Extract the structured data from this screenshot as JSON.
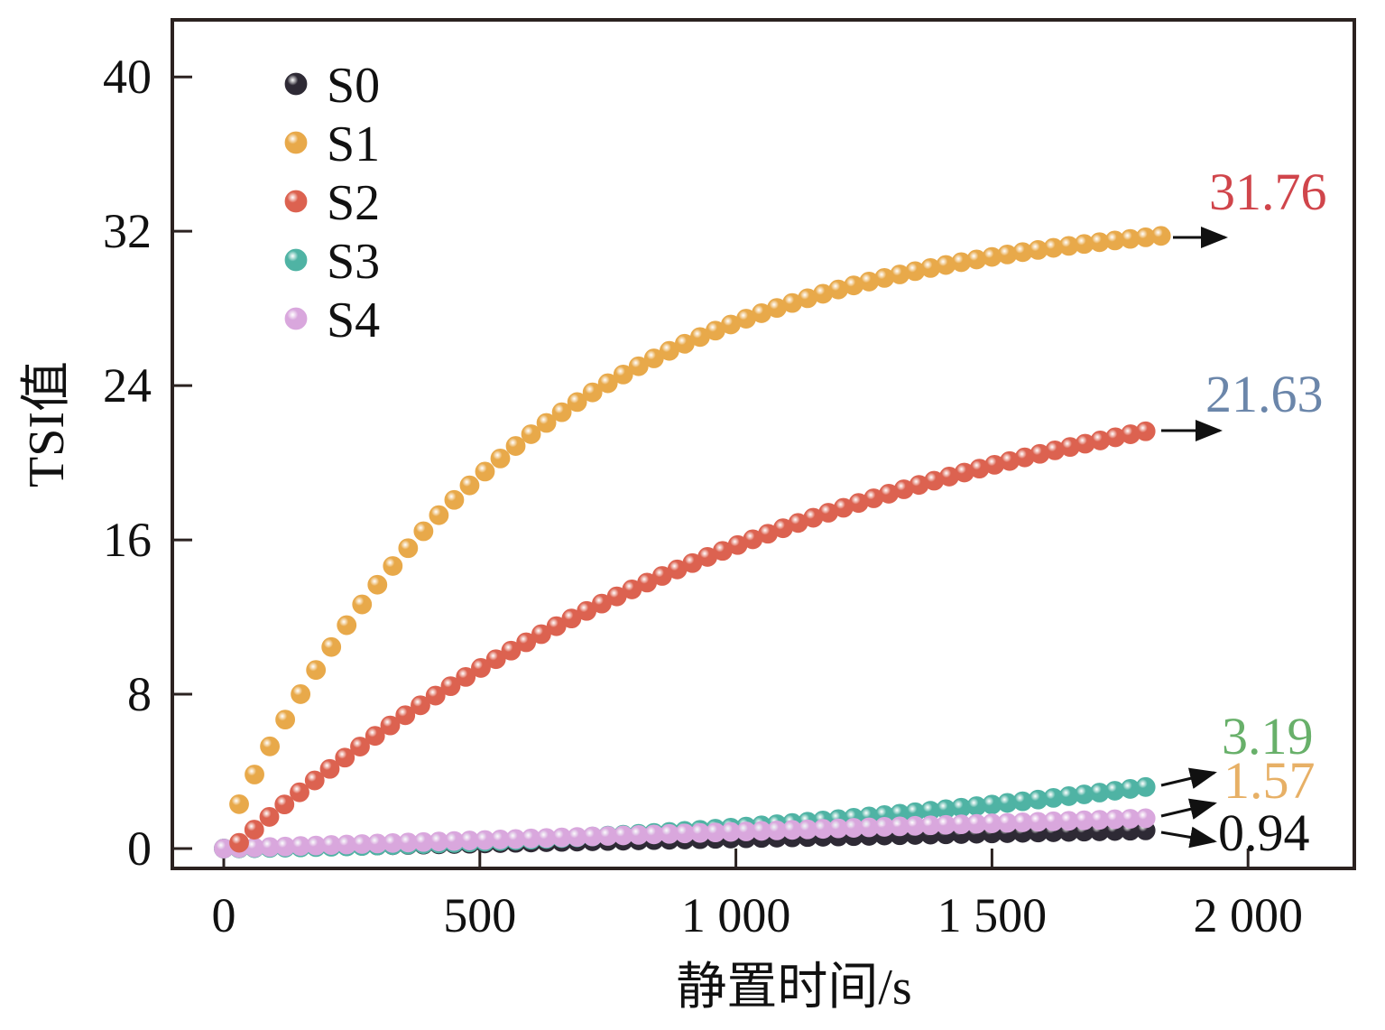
{
  "chart_data": {
    "type": "scatter",
    "title": "",
    "xlabel": "静置时间/s",
    "ylabel": "TSI值",
    "xlim": [
      -100,
      2200
    ],
    "ylim": [
      -1,
      43
    ],
    "x_ticks": [
      0,
      500,
      1000,
      1500,
      2000
    ],
    "x_tick_labels": [
      "0",
      "500",
      "1 000",
      "1 500",
      "2 000"
    ],
    "y_ticks": [
      0,
      8,
      16,
      24,
      32,
      40
    ],
    "y_tick_labels": [
      "0",
      "8",
      "16",
      "24",
      "32",
      "40"
    ],
    "grid": false,
    "legend_position": "top-left",
    "series": [
      {
        "name": "S0",
        "color": "#2e2a35",
        "x_start": 0,
        "x_end": 1800,
        "final_value": 0.94,
        "shape": "linear"
      },
      {
        "name": "S1",
        "color": "#e8a94a",
        "x_start": 30,
        "x_end": 1830,
        "final_value": 31.76,
        "initial_value": 2.3,
        "shape": "saturating",
        "rate": 0.0017
      },
      {
        "name": "S2",
        "color": "#dc6250",
        "x_start": 30,
        "x_end": 1800,
        "final_value": 21.63,
        "initial_value": 0.3,
        "shape": "saturating",
        "rate": 0.00085
      },
      {
        "name": "S3",
        "color": "#4fb3a4",
        "x_start": 0,
        "x_end": 1800,
        "final_value": 3.19,
        "shape": "quadratic"
      },
      {
        "name": "S4",
        "color": "#d9a7dd",
        "x_start": 0,
        "x_end": 1800,
        "final_value": 1.57,
        "shape": "linear"
      }
    ],
    "annotations": [
      {
        "text": "31.76",
        "color": "#d0454b",
        "series": "S1"
      },
      {
        "text": "21.63",
        "color": "#6b86aa",
        "series": "S2"
      },
      {
        "text": "3.19",
        "color": "#68b06a",
        "series": "S3"
      },
      {
        "text": "1.57",
        "color": "#e7b066",
        "series": "S4"
      },
      {
        "text": "0.94",
        "color": "#111111",
        "series": "S0"
      }
    ]
  }
}
